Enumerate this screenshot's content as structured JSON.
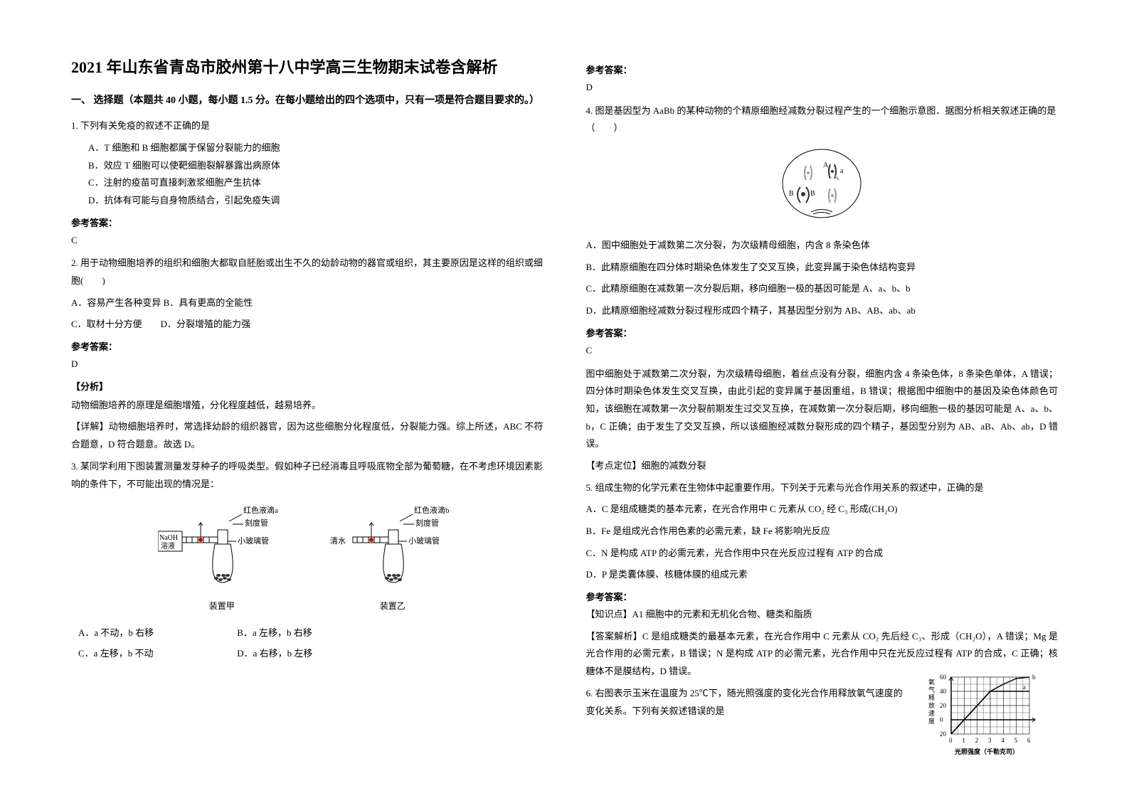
{
  "left": {
    "title": "2021 年山东省青岛市胶州第十八中学高三生物期末试卷含解析",
    "section1": "一、 选择题（本题共 40 小题，每小题 1.5 分。在每小题给出的四个选项中，只有一项是符合题目要求的。）",
    "q1": {
      "stem": "1. 下列有关免疫的叙述不正确的是",
      "a": "A．T 细胞和 B 细胞都属于保留分裂能力的细胞",
      "b": "B．效应 T 细胞可以使靶细胞裂解暴露出病原体",
      "c": "C．注射的疫苗可直接刺激浆细胞产生抗体",
      "d": "D．抗体有可能与自身物质结合，引起免疫失调",
      "ans_label": "参考答案：",
      "ans": "C"
    },
    "q2": {
      "stem": "2. 用于动物细胞培养的组织和细胞大都取自胚胎或出生不久的幼龄动物的器官或组织，其主要原因是这样的组织或细胞(　　)",
      "a": "A．容易产生各种变异 B．具有更高的全能性",
      "c": "C．取材十分方便　　D．分裂增殖的能力强",
      "ans_label": "参考答案：",
      "ans": "D",
      "fenxi_label": "【分析】",
      "fenxi": "动物细胞培养的原理是细胞增殖，分化程度越低，越易培养。",
      "xiangjie": "【详解】动物细胞培养时，常选择幼龄的组织器官，因为这些细胞分化程度低，分裂能力强。综上所述，ABC 不符合题意，D 符合题意。故选 D。"
    },
    "q3": {
      "stem": "3. 某同学利用下图装置测量发芽种子的呼吸类型。假如种子已经消毒且呼吸底物全部为葡萄糖，在不考虑环境因素影响的条件下，不可能出现的情况是：",
      "diagram": {
        "drop_a": "红色液滴a",
        "drop_b": "红色液滴b",
        "tube": "刻度管",
        "glass": "小玻璃管",
        "naoh": "NaOH\n溶液",
        "water": "清水",
        "dev_a": "装置甲",
        "dev_b": "装置乙",
        "seed_color": "#333333",
        "flask_stroke": "#000000"
      },
      "row1a": "A．a 不动，b 右移",
      "row1b": "B．a 左移，b 右移",
      "row2a": "C．a 左移，b 不动",
      "row2b": "D．a 右移，b 左移"
    }
  },
  "right": {
    "ans3_label": "参考答案：",
    "ans3": "D",
    "q4": {
      "stem": "4. 图是基因型为 AaBb 的某种动物的个精原细胞经减数分裂过程产生的一个细胞示意图．据图分析相关叙述正确的是（　　）",
      "cell": {
        "labels": [
          "A",
          "a",
          "B",
          "B"
        ],
        "colors": {
          "chrom_light": "#999999",
          "chrom_dark": "#333333",
          "outline": "#000000"
        }
      },
      "a": "A．图中细胞处于减数第二次分裂，为次级精母细胞，内含 8 条染色体",
      "b": "B．此精原细胞在四分体时期染色体发生了交叉互换，此变异属于染色体结构变异",
      "c": "C．此精原细胞在减数第一次分裂后期，移向细胞一极的基因可能是 A、a、b、b",
      "d": "D．此精原细胞经减数分裂过程形成四个精子，其基因型分别为 AB、AB、ab、ab",
      "ans_label": "参考答案：",
      "ans": "C",
      "explain": "图中细胞处于减数第二次分裂，为次级精母细胞，着丝点没有分裂，细胞内含 4 条染色体，8 条染色单体，A 错误；四分体时期染色体发生交叉互换，由此引起的变异属于基因重组，B 错误；根据图中细胞中的基因及染色体颜色可知，该细胞在减数第一次分裂前期发生过交叉互换，在减数第一次分裂后期，移向细胞一极的基因可能是 A、a、b、b，C 正确；由于发生了交叉互换，所以该细胞经减数分裂形成的四个精子，基因型分别为 AB、aB、Ab、ab，D 错误。",
      "kaodian": "【考点定位】细胞的减数分裂"
    },
    "q5": {
      "stem": "5. 组成生物的化学元素在生物体中起重要作用。下列关于元素与光合作用关系的叙述中，正确的是",
      "a": "A．C 是组成糖类的基本元素，在光合作用中 C 元素从 CO₂ 经 C₃ 形成(CH₂O)",
      "b": "B．Fe 是组成光合作用色素的必需元素，缺 Fe 将影响光反应",
      "c": "C．N 是构成 ATP 的必需元素，光合作用中只在光反应过程有 ATP 的合成",
      "d": "D．P 是类囊体膜、核糖体膜的组成元素",
      "ans_label": "参考答案：",
      "zhishi": "【知识点】A1 细胞中的元素和无机化合物、糖类和脂质",
      "explain": "【答案解析】C 是组成糖类的最基本元素，在光合作用中 C 元素从 CO₂ 先后经 C₃、形成（CH₂O），A 错误；Mg 是光合作用的必需元素，B 错误；N 是构成 ATP 的必需元素，光合作用中只在光反应过程有 ATP 的合成，C 正确；核糖体不是膜结构，D 错误。"
    },
    "q6": {
      "stem": "6. 右图表示玉米在温度为 25℃下，随光照强度的变化光合作用释放氧气速度的变化关系。下列有关叙述错误的是",
      "chart": {
        "type": "line",
        "x_label": "光照强度（千勒克司）",
        "y_label": "氧气释放速度",
        "x_ticks": [
          0,
          1,
          2,
          3,
          4,
          5,
          6
        ],
        "y_ticks": [
          -20,
          0,
          20,
          40,
          60
        ],
        "y_extra": "20",
        "points_a": [
          [
            0,
            -20
          ],
          [
            1,
            0
          ],
          [
            2,
            20
          ],
          [
            3,
            40
          ],
          [
            4,
            40
          ],
          [
            5,
            40
          ],
          [
            6,
            40
          ]
        ],
        "points_b": [
          [
            0,
            -20
          ],
          [
            1,
            0
          ],
          [
            2,
            20
          ],
          [
            3,
            40
          ],
          [
            4,
            50
          ],
          [
            5,
            58
          ],
          [
            6,
            60
          ]
        ],
        "label_a": "a",
        "label_b": "b",
        "grid_color": "#000000",
        "line_color": "#000000",
        "background_color": "#ffffff",
        "font_size": 9
      }
    }
  }
}
